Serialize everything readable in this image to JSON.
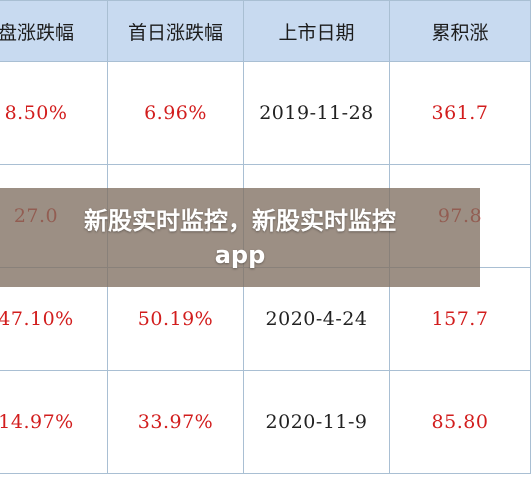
{
  "table": {
    "headers": [
      "盘涨跌幅",
      "首日涨跌幅",
      "上市日期",
      "累积涨"
    ],
    "rows": [
      [
        "8.50%",
        "6.96%",
        "2019-11-28",
        "361.7"
      ],
      [
        "27.0",
        "",
        "",
        "97.8"
      ],
      [
        "47.10%",
        "50.19%",
        "2020-4-24",
        "157.7"
      ],
      [
        "14.97%",
        "33.97%",
        "2020-11-9",
        "85.80"
      ]
    ]
  },
  "banner": {
    "line1": "新股实时监控，新股实时监控",
    "line2": "app"
  },
  "colors": {
    "header_bg": "#c8daf0",
    "border": "#a9bfd3",
    "value_red": "#d21d1d",
    "date_dark": "#222222",
    "banner_bg": "#807062"
  }
}
